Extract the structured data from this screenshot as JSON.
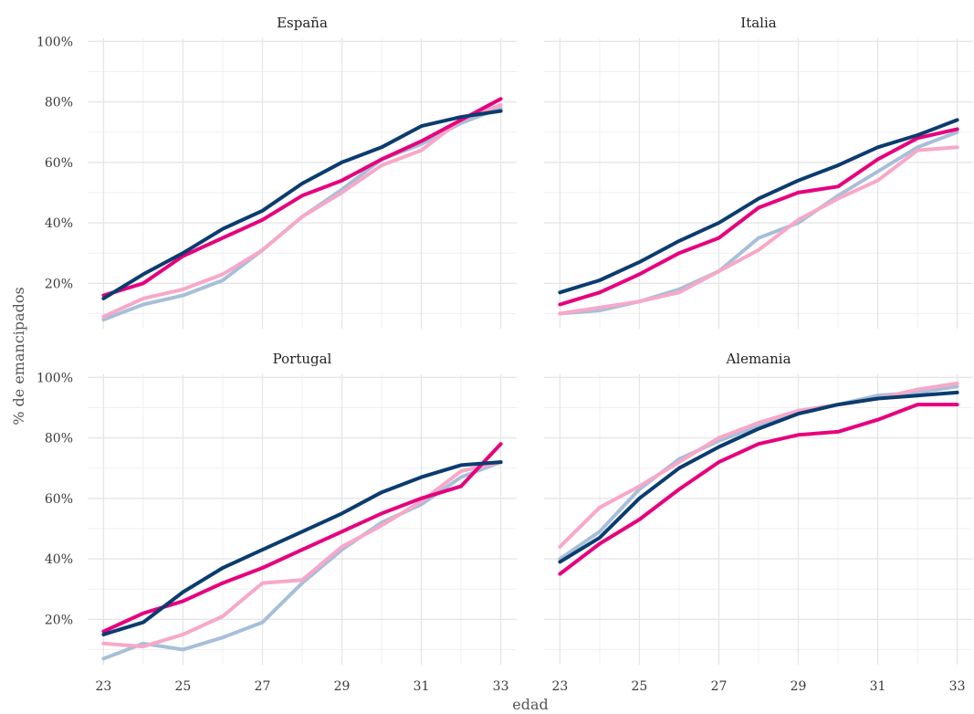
{
  "chart_data": {
    "type": "line",
    "xlabel": "edad",
    "ylabel": "% de emancipados",
    "x": [
      23,
      24,
      25,
      26,
      27,
      28,
      29,
      30,
      31,
      32,
      33
    ],
    "x_ticks": [
      23,
      25,
      27,
      29,
      31,
      33
    ],
    "y_ticks": [
      20,
      40,
      60,
      80,
      100
    ],
    "y_tick_labels": [
      "20%",
      "40%",
      "60%",
      "80%",
      "100%"
    ],
    "ylim": [
      5,
      101
    ],
    "grid": true,
    "legend": "none",
    "series_colors": [
      "#0b3c6f",
      "#e6007e",
      "#f7a8c9",
      "#a7bfd8"
    ],
    "facets": [
      {
        "title": "España",
        "series": [
          {
            "values": [
              15,
              23,
              30,
              38,
              44,
              53,
              60,
              65,
              72,
              75,
              77
            ]
          },
          {
            "values": [
              16,
              20,
              29,
              35,
              41,
              49,
              54,
              61,
              67,
              74,
              81
            ]
          },
          {
            "values": [
              9,
              15,
              18,
              23,
              31,
              42,
              50,
              59,
              64,
              74,
              79
            ]
          },
          {
            "values": [
              8,
              13,
              16,
              21,
              31,
              42,
              51,
              61,
              66,
              73,
              78
            ]
          }
        ]
      },
      {
        "title": "Italia",
        "series": [
          {
            "values": [
              17,
              21,
              27,
              34,
              40,
              48,
              54,
              59,
              65,
              69,
              74
            ]
          },
          {
            "values": [
              13,
              17,
              23,
              30,
              35,
              45,
              50,
              52,
              61,
              68,
              71
            ]
          },
          {
            "values": [
              10,
              12,
              14,
              17,
              24,
              31,
              41,
              48,
              54,
              64,
              65
            ]
          },
          {
            "values": [
              10,
              11,
              14,
              18,
              24,
              35,
              40,
              49,
              57,
              65,
              70
            ]
          }
        ]
      },
      {
        "title": "Portugal",
        "series": [
          {
            "values": [
              15,
              19,
              29,
              37,
              43,
              49,
              55,
              62,
              67,
              71,
              72
            ]
          },
          {
            "values": [
              16,
              22,
              26,
              32,
              37,
              43,
              49,
              55,
              60,
              64,
              78
            ]
          },
          {
            "values": [
              12,
              11,
              15,
              21,
              32,
              33,
              44,
              51,
              59,
              69,
              72
            ]
          },
          {
            "values": [
              7,
              12,
              10,
              14,
              19,
              32,
              43,
              52,
              58,
              67,
              72
            ]
          }
        ]
      },
      {
        "title": "Alemania",
        "series": [
          {
            "values": [
              39,
              47,
              60,
              70,
              77,
              83,
              88,
              91,
              93,
              94,
              95
            ]
          },
          {
            "values": [
              35,
              45,
              53,
              63,
              72,
              78,
              81,
              82,
              86,
              91,
              91
            ]
          },
          {
            "values": [
              44,
              57,
              64,
              72,
              80,
              85,
              89,
              91,
              93,
              96,
              98
            ]
          },
          {
            "values": [
              40,
              49,
              63,
              73,
              79,
              84,
              88,
              91,
              94,
              95,
              97
            ]
          }
        ]
      }
    ]
  }
}
